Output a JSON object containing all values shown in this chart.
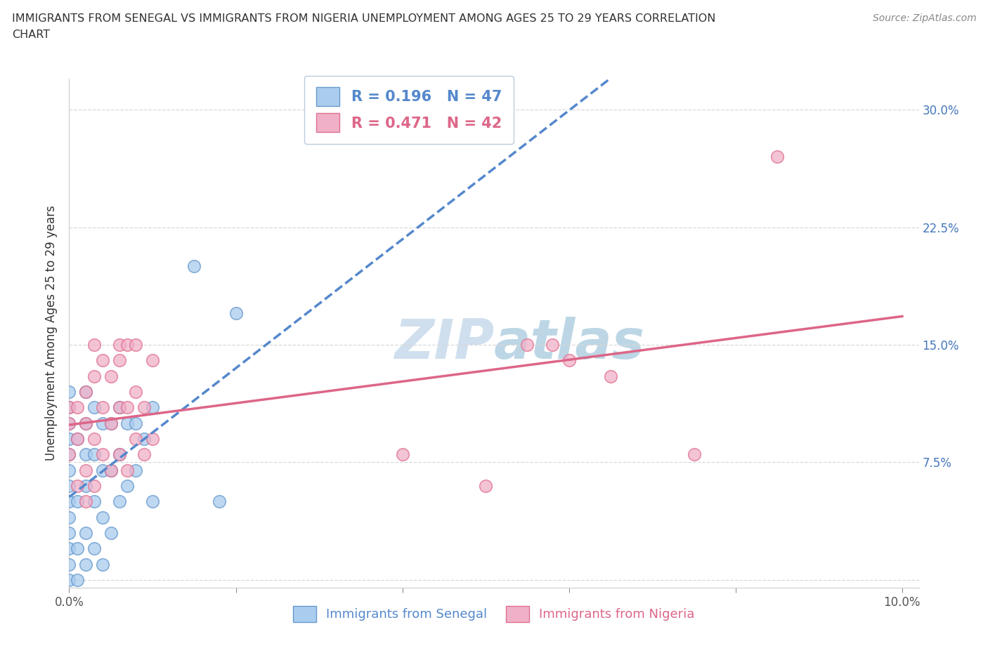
{
  "title_line1": "IMMIGRANTS FROM SENEGAL VS IMMIGRANTS FROM NIGERIA UNEMPLOYMENT AMONG AGES 25 TO 29 YEARS CORRELATION",
  "title_line2": "CHART",
  "source": "Source: ZipAtlas.com",
  "ylabel": "Unemployment Among Ages 25 to 29 years",
  "xlim": [
    0.0,
    0.102
  ],
  "ylim": [
    -0.005,
    0.32
  ],
  "plot_ylim": [
    0.0,
    0.32
  ],
  "xticks": [
    0.0,
    0.02,
    0.04,
    0.06,
    0.08,
    0.1
  ],
  "yticks": [
    0.0,
    0.075,
    0.15,
    0.225,
    0.3
  ],
  "ytick_labels_right": [
    "",
    "7.5%",
    "15.0%",
    "22.5%",
    "30.0%"
  ],
  "grid_color": "#d8d8d8",
  "senegal_face_color": "#aaccee",
  "senegal_edge_color": "#6699cc",
  "nigeria_face_color": "#f0b0c8",
  "nigeria_edge_color": "#e07090",
  "senegal_line_color": "#5588cc",
  "nigeria_line_color": "#dd6688",
  "title_color": "#333333",
  "source_color": "#888888",
  "watermark_color": "#c5d8ea",
  "right_tick_color": "#4477bb",
  "R_senegal": 0.196,
  "N_senegal": 47,
  "R_nigeria": 0.471,
  "N_nigeria": 42,
  "senegal_x": [
    0.0,
    0.0,
    0.0,
    0.0,
    0.0,
    0.0,
    0.0,
    0.0,
    0.0,
    0.0,
    0.0,
    0.0,
    0.0,
    0.001,
    0.001,
    0.001,
    0.001,
    0.002,
    0.002,
    0.002,
    0.002,
    0.002,
    0.002,
    0.003,
    0.003,
    0.003,
    0.003,
    0.004,
    0.004,
    0.004,
    0.004,
    0.005,
    0.005,
    0.005,
    0.006,
    0.006,
    0.006,
    0.007,
    0.007,
    0.008,
    0.008,
    0.009,
    0.01,
    0.01,
    0.015,
    0.018,
    0.02
  ],
  "senegal_y": [
    0.0,
    0.01,
    0.02,
    0.03,
    0.05,
    0.06,
    0.07,
    0.08,
    0.09,
    0.1,
    0.11,
    0.12,
    0.04,
    0.0,
    0.02,
    0.05,
    0.09,
    0.01,
    0.03,
    0.06,
    0.08,
    0.1,
    0.12,
    0.02,
    0.05,
    0.08,
    0.11,
    0.01,
    0.04,
    0.07,
    0.1,
    0.03,
    0.07,
    0.1,
    0.05,
    0.08,
    0.11,
    0.06,
    0.1,
    0.07,
    0.1,
    0.09,
    0.05,
    0.11,
    0.2,
    0.05,
    0.17
  ],
  "nigeria_x": [
    0.0,
    0.0,
    0.0,
    0.001,
    0.001,
    0.001,
    0.002,
    0.002,
    0.002,
    0.002,
    0.003,
    0.003,
    0.003,
    0.003,
    0.004,
    0.004,
    0.004,
    0.005,
    0.005,
    0.005,
    0.006,
    0.006,
    0.006,
    0.006,
    0.007,
    0.007,
    0.007,
    0.008,
    0.008,
    0.008,
    0.009,
    0.009,
    0.01,
    0.01,
    0.04,
    0.05,
    0.055,
    0.058,
    0.06,
    0.065,
    0.075,
    0.085
  ],
  "nigeria_y": [
    0.08,
    0.1,
    0.11,
    0.06,
    0.09,
    0.11,
    0.07,
    0.1,
    0.12,
    0.05,
    0.06,
    0.09,
    0.13,
    0.15,
    0.08,
    0.11,
    0.14,
    0.07,
    0.1,
    0.13,
    0.08,
    0.11,
    0.14,
    0.15,
    0.07,
    0.11,
    0.15,
    0.09,
    0.12,
    0.15,
    0.08,
    0.11,
    0.09,
    0.14,
    0.08,
    0.06,
    0.15,
    0.15,
    0.14,
    0.13,
    0.08,
    0.27
  ],
  "senegal_legend_label": "Immigrants from Senegal",
  "nigeria_legend_label": "Immigrants from Nigeria"
}
